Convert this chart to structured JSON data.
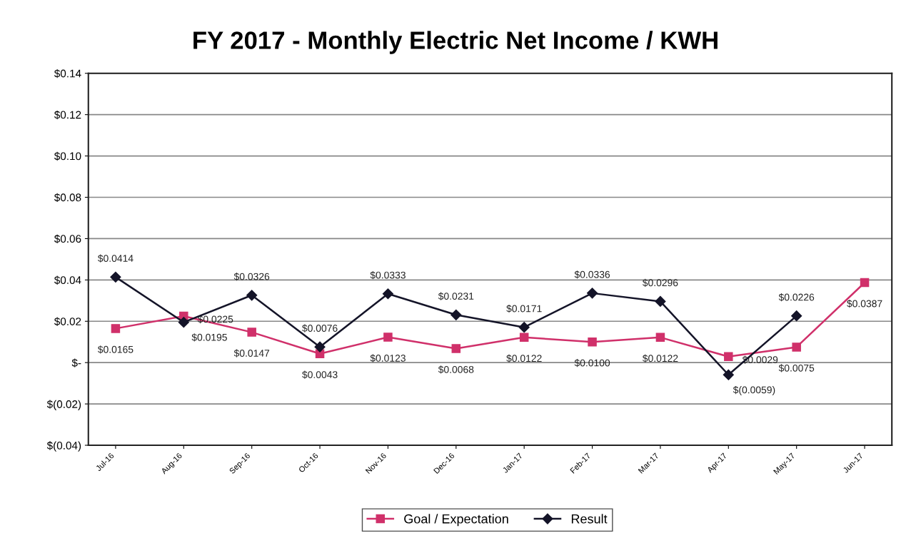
{
  "chart_data": {
    "type": "line",
    "title": "FY 2017 - Monthly Electric Net Income / KWH",
    "categories": [
      "Jul-16",
      "Aug-16",
      "Sep-16",
      "Oct-16",
      "Nov-16",
      "Dec-16",
      "Jan-17",
      "Feb-17",
      "Mar-17",
      "Apr-17",
      "May-17",
      "Jun-17"
    ],
    "series": [
      {
        "name": "Goal / Expectation",
        "color": "#d0306a",
        "marker": "square",
        "values": [
          0.0165,
          0.0225,
          0.0147,
          0.0043,
          0.0123,
          0.0068,
          0.0122,
          0.01,
          0.0122,
          0.0029,
          0.0075,
          0.0387
        ],
        "value_labels": [
          "$0.0165",
          "$0.0225",
          "$0.0147",
          "$0.0043",
          "$0.0123",
          "$0.0068",
          "$0.0122",
          "$0.0100",
          "$0.0122",
          "$0.0029",
          "$0.0075",
          "$0.0387"
        ]
      },
      {
        "name": "Result",
        "color": "#141428",
        "marker": "diamond",
        "values": [
          0.0414,
          0.0195,
          0.0326,
          0.0076,
          0.0333,
          0.0231,
          0.0171,
          0.0336,
          0.0296,
          -0.0059,
          0.0226,
          null
        ],
        "value_labels": [
          "$0.0414",
          "$0.0195",
          "$0.0326",
          "$0.0076",
          "$0.0333",
          "$0.0231",
          "$0.0171",
          "$0.0336",
          "$0.0296",
          "$(0.0059)",
          "$0.0226",
          null
        ]
      }
    ],
    "ylim": [
      -0.04,
      0.14
    ],
    "yticks": [
      {
        "value": -0.04,
        "label": "$(0.04)"
      },
      {
        "value": -0.02,
        "label": "$(0.02)"
      },
      {
        "value": 0,
        "label": "$-"
      },
      {
        "value": 0.02,
        "label": "$0.02"
      },
      {
        "value": 0.04,
        "label": "$0.04"
      },
      {
        "value": 0.06,
        "label": "$0.06"
      },
      {
        "value": 0.08,
        "label": "$0.08"
      },
      {
        "value": 0.1,
        "label": "$0.10"
      },
      {
        "value": 0.12,
        "label": "$0.12"
      },
      {
        "value": 0.14,
        "label": "$0.14"
      }
    ],
    "grid": "y",
    "legend": "bottom",
    "line_style": "solid"
  }
}
